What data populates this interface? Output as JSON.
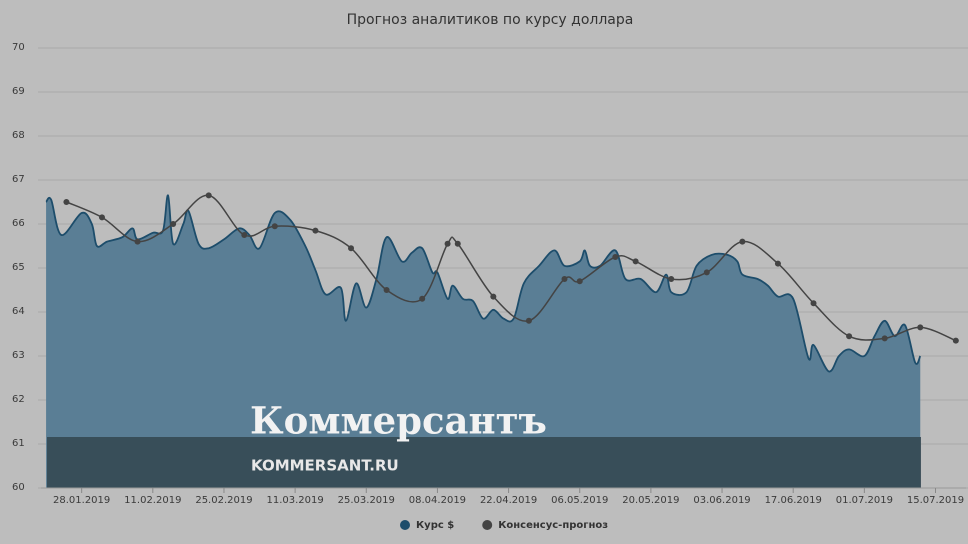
{
  "chart_data": {
    "type": "area",
    "title": "Прогноз аналитиков по курсу доллара",
    "overlay": {
      "logo": "Коммерсантъ",
      "site": "KOMMERSANT.RU"
    },
    "xlim": [
      "2019-01-20",
      "2019-07-21"
    ],
    "xticks": [
      {
        "value": "2019-01-28",
        "label": "28.01.2019"
      },
      {
        "value": "2019-02-11",
        "label": "11.02.2019"
      },
      {
        "value": "2019-02-25",
        "label": "25.02.2019"
      },
      {
        "value": "2019-03-11",
        "label": "11.03.2019"
      },
      {
        "value": "2019-03-25",
        "label": "25.03.2019"
      },
      {
        "value": "2019-04-08",
        "label": "08.04.2019"
      },
      {
        "value": "2019-04-22",
        "label": "22.04.2019"
      },
      {
        "value": "2019-05-06",
        "label": "06.05.2019"
      },
      {
        "value": "2019-05-20",
        "label": "20.05.2019"
      },
      {
        "value": "2019-06-03",
        "label": "03.06.2019"
      },
      {
        "value": "2019-06-17",
        "label": "17.06.2019"
      },
      {
        "value": "2019-07-01",
        "label": "01.07.2019"
      },
      {
        "value": "2019-07-15",
        "label": "15.07.2019"
      }
    ],
    "ylim": [
      60,
      70
    ],
    "yticks": [
      60,
      61,
      62,
      63,
      64,
      65,
      66,
      67,
      68,
      69,
      70
    ],
    "grid": true,
    "series": [
      {
        "name": "Курс $",
        "color": "#1d4d6b",
        "fill": "#5a7e95",
        "x": [
          "2019-01-21",
          "2019-01-22",
          "2019-01-24",
          "2019-01-28",
          "2019-01-30",
          "2019-01-31",
          "2019-02-02",
          "2019-02-05",
          "2019-02-07",
          "2019-02-08",
          "2019-02-11",
          "2019-02-13",
          "2019-02-14",
          "2019-02-15",
          "2019-02-17",
          "2019-02-18",
          "2019-02-20",
          "2019-02-22",
          "2019-02-25",
          "2019-02-28",
          "2019-03-02",
          "2019-03-04",
          "2019-03-07",
          "2019-03-10",
          "2019-03-13",
          "2019-03-15",
          "2019-03-17",
          "2019-03-20",
          "2019-03-21",
          "2019-03-23",
          "2019-03-25",
          "2019-03-27",
          "2019-03-29",
          "2019-04-01",
          "2019-04-03",
          "2019-04-05",
          "2019-04-07",
          "2019-04-08",
          "2019-04-10",
          "2019-04-11",
          "2019-04-13",
          "2019-04-15",
          "2019-04-17",
          "2019-04-19",
          "2019-04-21",
          "2019-04-23",
          "2019-04-25",
          "2019-04-28",
          "2019-05-01",
          "2019-05-03",
          "2019-05-06",
          "2019-05-07",
          "2019-05-08",
          "2019-05-10",
          "2019-05-13",
          "2019-05-15",
          "2019-05-18",
          "2019-05-21",
          "2019-05-23",
          "2019-05-24",
          "2019-05-27",
          "2019-05-29",
          "2019-06-01",
          "2019-06-04",
          "2019-06-06",
          "2019-06-07",
          "2019-06-10",
          "2019-06-12",
          "2019-06-14",
          "2019-06-17",
          "2019-06-20",
          "2019-06-21",
          "2019-06-24",
          "2019-06-26",
          "2019-06-28",
          "2019-07-01",
          "2019-07-03",
          "2019-07-05",
          "2019-07-07",
          "2019-07-09",
          "2019-07-11",
          "2019-07-12"
        ],
        "values": [
          66.5,
          66.55,
          65.75,
          66.25,
          66.0,
          65.5,
          65.6,
          65.7,
          65.9,
          65.65,
          65.8,
          65.85,
          66.65,
          65.55,
          66.0,
          66.3,
          65.55,
          65.45,
          65.65,
          65.9,
          65.75,
          65.45,
          66.25,
          66.1,
          65.5,
          64.95,
          64.4,
          64.55,
          63.8,
          64.65,
          64.1,
          64.75,
          65.7,
          65.15,
          65.35,
          65.45,
          64.9,
          64.9,
          64.3,
          64.6,
          64.3,
          64.25,
          63.85,
          64.05,
          63.85,
          63.85,
          64.65,
          65.05,
          65.4,
          65.05,
          65.15,
          65.4,
          65.05,
          65.05,
          65.4,
          64.75,
          64.75,
          64.45,
          64.85,
          64.45,
          64.45,
          65.05,
          65.3,
          65.3,
          65.15,
          64.85,
          64.75,
          64.6,
          64.35,
          64.3,
          62.95,
          63.25,
          62.65,
          63.0,
          63.15,
          63.0,
          63.45,
          63.8,
          63.45,
          63.7,
          62.85,
          63.0
        ]
      },
      {
        "name": "Консенсус-прогноз",
        "color": "#444444",
        "x": [
          "2019-01-25",
          "2019-02-01",
          "2019-02-08",
          "2019-02-15",
          "2019-02-22",
          "2019-03-01",
          "2019-03-07",
          "2019-03-15",
          "2019-03-22",
          "2019-03-29",
          "2019-04-05",
          "2019-04-10",
          "2019-04-12",
          "2019-04-19",
          "2019-04-26",
          "2019-05-03",
          "2019-05-06",
          "2019-05-13",
          "2019-05-17",
          "2019-05-24",
          "2019-05-31",
          "2019-06-07",
          "2019-06-14",
          "2019-06-21",
          "2019-06-28",
          "2019-07-05",
          "2019-07-12",
          "2019-07-19"
        ],
        "values": [
          66.5,
          66.15,
          65.6,
          66.0,
          66.65,
          65.75,
          65.95,
          65.85,
          65.45,
          64.5,
          64.3,
          65.55,
          65.55,
          64.35,
          63.8,
          64.75,
          64.7,
          65.25,
          65.15,
          64.75,
          64.9,
          65.6,
          65.1,
          64.2,
          63.45,
          63.4,
          63.65,
          63.35
        ]
      }
    ]
  }
}
